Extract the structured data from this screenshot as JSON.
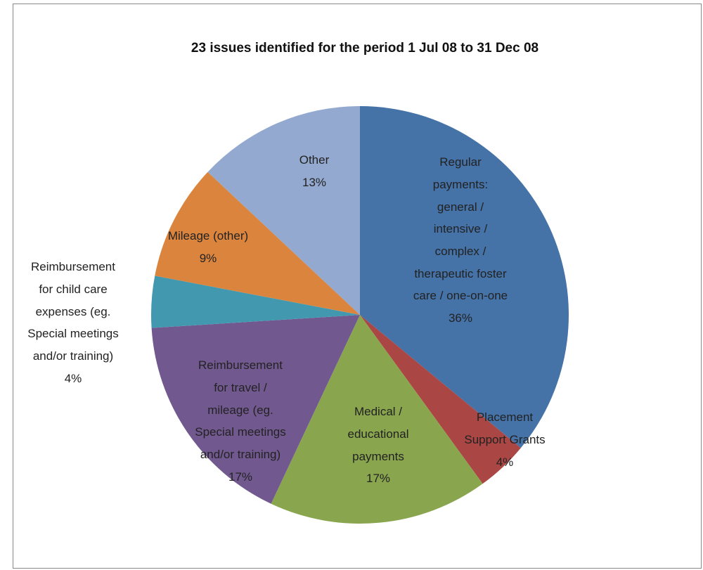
{
  "chart_data": {
    "type": "pie",
    "title": "23 issues identified for the period 1 Jul 08 to 31 Dec 08",
    "categories": [
      "Regular\npayments:\ngeneral /\nintensive /\ncomplex /\ntherapeutic foster\ncare / one-on-one",
      "Placement\nSupport Grants",
      "Medical /\neducational\npayments",
      "Reimbursement\nfor travel /\nmileage (eg.\nSpecial meetings\nand/or training)",
      "Reimbursement\nfor child care\nexpenses (eg.\nSpecial meetings\nand/or training)",
      "Mileage (other)",
      "Other"
    ],
    "values": [
      36,
      4,
      17,
      17,
      4,
      9,
      13
    ],
    "value_labels": [
      "36%",
      "4%",
      "17%",
      "17%",
      "4%",
      "9%",
      "13%"
    ],
    "colors": [
      "#4572a7",
      "#aa4643",
      "#89a54e",
      "#71588f",
      "#4198af",
      "#db843d",
      "#93a9cf"
    ]
  }
}
